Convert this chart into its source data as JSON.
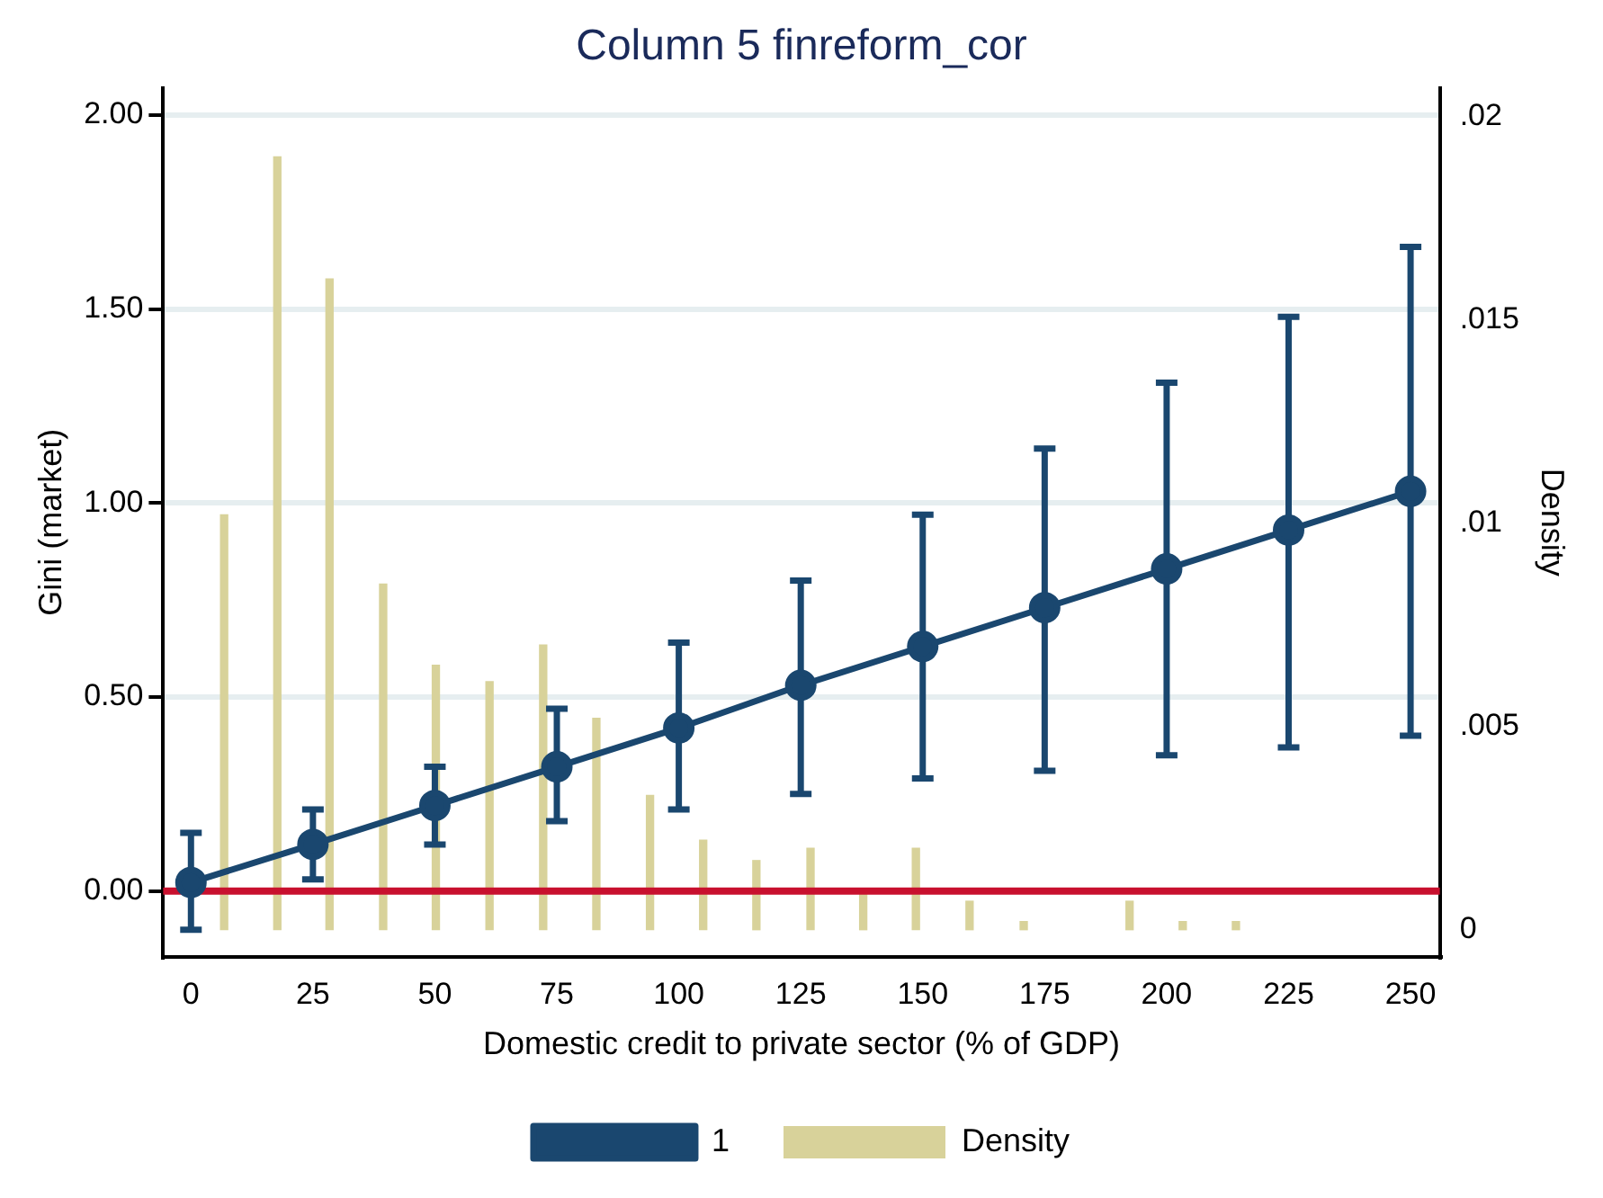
{
  "chart_data": {
    "type": "line",
    "title": "Column 5 finreform_cor",
    "xlabel": "Domestic credit to private sector (% of GDP)",
    "ylabel": "Gini (market)",
    "y2label": "Density",
    "x": [
      0,
      25,
      50,
      75,
      100,
      125,
      150,
      175,
      200,
      225,
      250
    ],
    "series": [
      {
        "name": "1",
        "color": "#1a476f",
        "marker": "circle",
        "values": [
          0.022,
          0.12,
          0.22,
          0.32,
          0.42,
          0.53,
          0.63,
          0.73,
          0.83,
          0.93,
          1.03
        ],
        "errors": [
          [
            -0.1,
            0.15
          ],
          [
            0.03,
            0.21
          ],
          [
            0.12,
            0.32
          ],
          [
            0.18,
            0.47
          ],
          [
            0.21,
            0.64
          ],
          [
            0.25,
            0.8
          ],
          [
            0.29,
            0.97
          ],
          [
            0.31,
            1.14
          ],
          [
            0.35,
            1.31
          ],
          [
            0.37,
            1.48
          ],
          [
            0.4,
            1.66
          ]
        ]
      },
      {
        "name": "Density",
        "type": "bar",
        "axis": "y2",
        "color": "#d8d29a",
        "x": [
          6.8,
          17.7,
          28.4,
          39.4,
          50.2,
          61.2,
          72.2,
          83.1,
          94.1,
          105.0,
          115.9,
          127.0,
          137.8,
          148.6,
          159.6,
          170.7,
          192.4,
          203.3,
          214.2
        ],
        "values": [
          0.0102,
          0.019,
          0.016,
          0.0085,
          0.0065,
          0.0061,
          0.007,
          0.0052,
          0.0033,
          0.0022,
          0.0017,
          0.002,
          0.0009,
          0.002,
          0.0007,
          0.0002,
          0.0007,
          0.0002,
          0.0002
        ]
      }
    ],
    "xlim": [
      -5.7,
      256
    ],
    "xticks": [
      0,
      25,
      50,
      75,
      100,
      125,
      150,
      175,
      200,
      225,
      250
    ],
    "ylim": [
      -0.17,
      2.07
    ],
    "yticks": [
      {
        "value": 0,
        "label": "0.00"
      },
      {
        "value": 0.5,
        "label": "0.50"
      },
      {
        "value": 1,
        "label": "1.00"
      },
      {
        "value": 1.5,
        "label": "1.50"
      },
      {
        "value": 2,
        "label": "2.00"
      }
    ],
    "y2lim": [
      -0.00067,
      0.0207
    ],
    "y2ticks": [
      0,
      {
        "value": 0.005,
        "label": ".005"
      },
      {
        "value": 0.01,
        "label": ".01"
      },
      {
        "value": 0.015,
        "label": ".015"
      },
      {
        "value": 0.02,
        "label": ".02"
      }
    ],
    "ref_lines": [
      {
        "axis": "y",
        "value": 0,
        "color": "#c8102e"
      }
    ],
    "grid": "y",
    "legend": "bottom"
  }
}
